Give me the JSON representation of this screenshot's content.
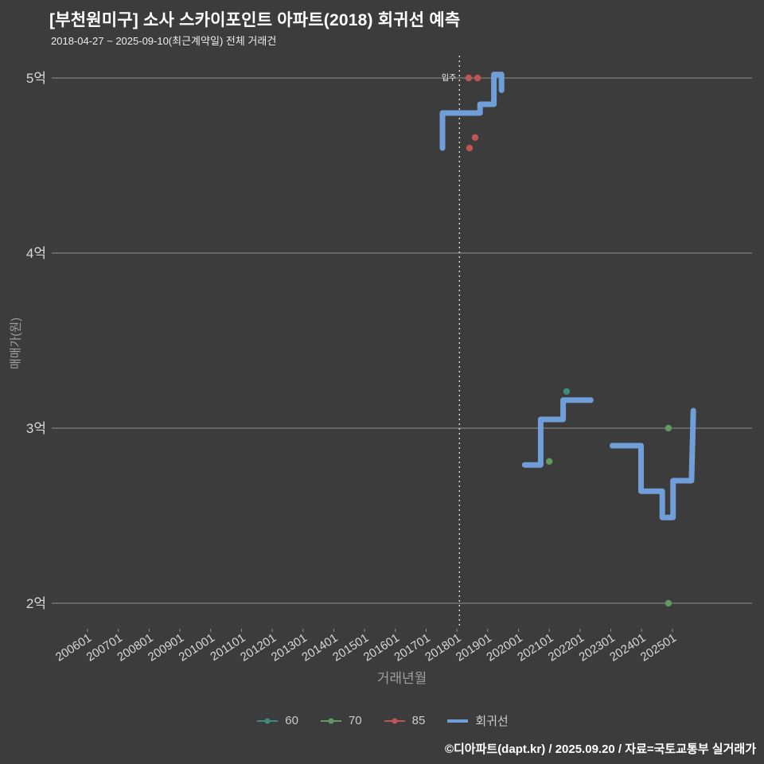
{
  "header": {
    "title": "[부천원미구] 소사 스카이포인트 아파트(2018) 회귀선 예측",
    "subtitle": "2018-04-27 ~ 2025-09-10(최근계약일) 전체 거래건"
  },
  "footer": {
    "credit": "©디아파트(dapt.kr) / 2025.09.20 / 자료=국토교통부 실거래가"
  },
  "chart_data": {
    "type": "line",
    "title": "[부천원미구] 소사 스카이포인트 아파트(2018) 회귀선 예측",
    "subtitle": "2018-04-27 ~ 2025-09-10(최근계약일) 전체 거래건",
    "xlabel": "거래년월",
    "ylabel": "매매가(원)",
    "x_ticks": [
      "200601",
      "200701",
      "200801",
      "200901",
      "201001",
      "201101",
      "201201",
      "201301",
      "201401",
      "201501",
      "201601",
      "201701",
      "201801",
      "201901",
      "202001",
      "202101",
      "202201",
      "202301",
      "202401",
      "202501"
    ],
    "y_ticks": [
      {
        "label": "5억",
        "value": 5.0
      },
      {
        "label": "4억",
        "value": 4.0
      },
      {
        "label": "3억",
        "value": 3.0
      },
      {
        "label": "2억",
        "value": 2.0
      }
    ],
    "ylim": [
      1.85,
      5.13
    ],
    "grid": "horizontal",
    "legend_position": "bottom-center",
    "annotation": {
      "label": "입주",
      "x": 2018.08,
      "style": "dotted-vertical-line"
    },
    "colors": {
      "background": "#3c3c3c",
      "grid": "#8f8f8f",
      "tick_label": "#d8d8d8",
      "axis_label": "#9f9f9f",
      "title": "#ffffff",
      "annotation_line": "#eeeeee"
    },
    "series": [
      {
        "name": "60",
        "type": "scatter",
        "color": "#3d8c7c",
        "points": [
          [
            2021.56,
            3.21
          ]
        ]
      },
      {
        "name": "70",
        "type": "scatter",
        "color": "#5f9b5f",
        "points": [
          [
            2021.0,
            2.81
          ],
          [
            2024.87,
            3.0
          ],
          [
            2024.87,
            2.0
          ]
        ]
      },
      {
        "name": "85",
        "type": "scatter",
        "color": "#bf5654",
        "points": [
          [
            2018.38,
            5.0
          ],
          [
            2018.67,
            5.0
          ],
          [
            2018.59,
            4.66
          ],
          [
            2018.41,
            4.6
          ]
        ]
      },
      {
        "name": "회귀선",
        "type": "line",
        "color": "#6f9ed8",
        "stroke_width": 7,
        "segments": [
          [
            [
              2017.53,
              4.6
            ],
            [
              2017.53,
              4.8
            ],
            [
              2018.75,
              4.8
            ],
            [
              2018.75,
              4.85
            ],
            [
              2019.2,
              4.85
            ],
            [
              2019.2,
              5.02
            ],
            [
              2019.45,
              5.02
            ],
            [
              2019.45,
              4.93
            ]
          ],
          [
            [
              2020.2,
              2.79
            ],
            [
              2020.72,
              2.79
            ],
            [
              2020.72,
              3.05
            ],
            [
              2021.45,
              3.05
            ],
            [
              2021.45,
              3.16
            ],
            [
              2022.35,
              3.16
            ]
          ],
          [
            [
              2023.05,
              2.9
            ],
            [
              2023.98,
              2.9
            ],
            [
              2023.98,
              2.64
            ],
            [
              2024.67,
              2.64
            ],
            [
              2024.67,
              2.49
            ],
            [
              2025.02,
              2.49
            ],
            [
              2025.02,
              2.7
            ],
            [
              2025.62,
              2.7
            ],
            [
              2025.68,
              3.1
            ]
          ]
        ]
      }
    ]
  }
}
